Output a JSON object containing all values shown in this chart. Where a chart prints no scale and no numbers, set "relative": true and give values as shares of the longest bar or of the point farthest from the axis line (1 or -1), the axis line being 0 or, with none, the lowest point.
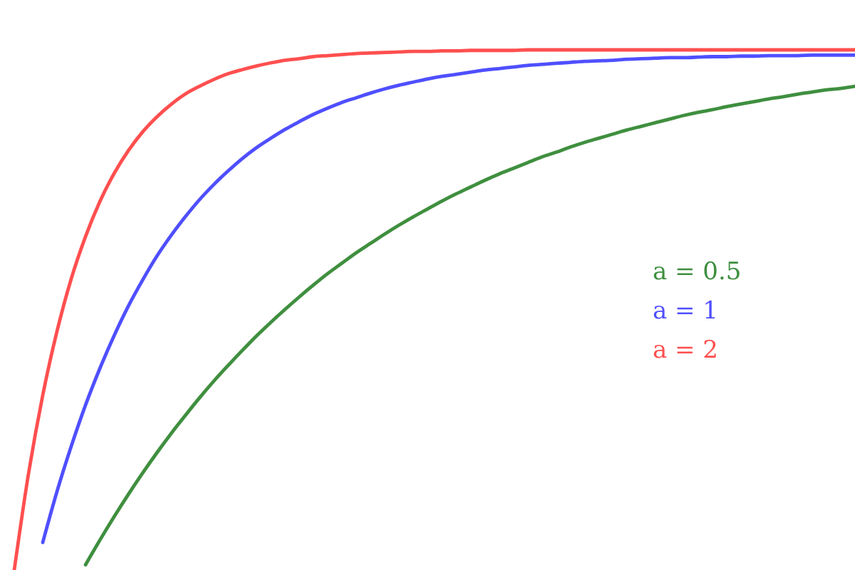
{
  "chart_data": {
    "type": "line",
    "relative": true,
    "legend": "right",
    "categories": [
      null,
      null,
      null,
      null,
      null,
      null,
      null,
      null,
      null,
      null,
      null,
      null,
      null,
      null,
      null,
      null,
      null,
      null,
      null,
      null,
      null,
      null,
      null,
      null,
      null,
      null,
      null,
      null,
      null,
      null,
      null,
      null,
      null,
      null,
      null,
      null,
      null,
      null,
      null,
      null,
      null,
      null,
      null,
      null,
      null,
      null,
      null,
      null,
      null,
      null,
      null,
      null,
      null,
      null,
      null,
      null,
      null,
      null,
      null,
      null,
      null
    ],
    "series": [
      {
        "name": "a = 0.5",
        "color": "#3f8f3f",
        "values": [
          null,
          null,
          null,
          null,
          null,
          null,
          0.01,
          0.057,
          0.102,
          0.145,
          0.186,
          0.225,
          0.262,
          0.297,
          0.331,
          0.363,
          0.393,
          0.422,
          0.45,
          0.476,
          0.501,
          0.525,
          0.548,
          0.57,
          0.59,
          0.61,
          0.628,
          0.646,
          0.663,
          0.679,
          0.694,
          0.709,
          0.723,
          0.736,
          0.749,
          0.761,
          0.772,
          0.783,
          0.794,
          0.803,
          0.813,
          0.822,
          0.83,
          0.838,
          0.846,
          0.853,
          0.86,
          0.867,
          0.874,
          0.88,
          0.885,
          0.891,
          0.896,
          0.901,
          0.906,
          0.91,
          0.915,
          0.919,
          0.923,
          0.926,
          0.93
        ]
      },
      {
        "name": "a = 1",
        "color": "#4f4fff",
        "values": [
          null,
          null,
          null,
          0.053,
          0.151,
          0.238,
          0.317,
          0.387,
          0.45,
          0.507,
          0.557,
          0.603,
          0.643,
          0.679,
          0.712,
          0.741,
          0.767,
          0.791,
          0.812,
          0.83,
          0.847,
          0.862,
          0.876,
          0.888,
          0.899,
          0.908,
          0.917,
          0.925,
          0.932,
          0.938,
          0.944,
          0.949,
          0.953,
          0.957,
          0.961,
          0.964,
          0.967,
          0.97,
          0.972,
          0.974,
          0.976,
          0.978,
          0.979,
          0.98,
          0.982,
          0.983,
          0.984,
          0.985,
          0.985,
          0.986,
          0.987,
          0.987,
          0.988,
          0.988,
          0.989,
          0.989,
          0.989,
          0.99,
          0.99,
          0.99,
          0.99
        ]
      },
      {
        "name": "a = 2",
        "color": "#ff4f4f",
        "values": [
          null,
          0,
          0.185,
          0.336,
          0.459,
          0.56,
          0.641,
          0.708,
          0.762,
          0.806,
          0.842,
          0.871,
          0.895,
          0.915,
          0.93,
          0.943,
          0.954,
          0.962,
          0.969,
          0.975,
          0.98,
          0.983,
          0.987,
          0.989,
          0.991,
          0.993,
          0.994,
          0.995,
          0.996,
          0.997,
          0.997,
          0.998,
          0.998,
          0.999,
          0.999,
          0.999,
          0.999,
          1,
          1,
          1,
          1,
          1,
          1,
          1,
          1,
          1,
          1,
          1,
          1,
          1,
          1,
          1,
          1,
          1,
          1,
          1,
          1,
          1,
          1,
          1,
          1
        ]
      }
    ]
  }
}
